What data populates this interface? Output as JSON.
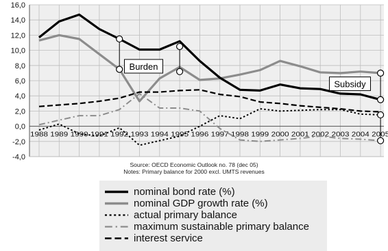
{
  "source_line1": "Source: OECD Economic Outlook no. 78 (dec 05)",
  "source_line2": "Notes: Primary balance for 2000 excl. UMTS revenues",
  "chart_data": {
    "type": "line",
    "x": [
      1988,
      1989,
      1990,
      1991,
      1992,
      1993,
      1994,
      1995,
      1996,
      1997,
      1998,
      1999,
      2000,
      2001,
      2002,
      2003,
      2004,
      2005
    ],
    "xlabel": "",
    "ylabel": "",
    "ylim": [
      -4.0,
      16.0
    ],
    "yticks": [
      "16,0",
      "14,0",
      "12,0",
      "10,0",
      "8,0",
      "6,0",
      "4,0",
      "2,0",
      "0,0",
      "-2,0",
      "-4,0"
    ],
    "grid": true,
    "series": [
      {
        "name": "nominal bond rate (%)",
        "color": "#000000",
        "style": "solid-thick",
        "values": [
          11.7,
          13.8,
          14.7,
          12.8,
          11.5,
          10.1,
          10.1,
          11.2,
          8.6,
          6.4,
          4.8,
          4.7,
          5.5,
          5.0,
          4.9,
          4.3,
          4.2,
          3.5
        ]
      },
      {
        "name": "nominal GDP growth rate (%)",
        "color": "#8c8c8c",
        "style": "solid-thick",
        "values": [
          11.3,
          12.0,
          11.5,
          9.5,
          7.5,
          3.3,
          6.3,
          7.8,
          6.1,
          6.3,
          6.8,
          7.4,
          8.6,
          7.9,
          7.1,
          7.0,
          7.2,
          7.0
        ]
      },
      {
        "name": "actual primary balance",
        "color": "#000000",
        "style": "dotted",
        "values": [
          -0.5,
          0.3,
          -1.0,
          -1.3,
          -0.2,
          -2.5,
          -1.9,
          -1.3,
          0.0,
          1.4,
          1.0,
          2.3,
          2.0,
          2.1,
          2.2,
          2.2,
          1.6,
          1.5
        ]
      },
      {
        "name": "maximum sustainable primary balance",
        "color": "#8c8c8c",
        "style": "dash-dot",
        "values": [
          0.2,
          0.8,
          1.4,
          1.4,
          2.2,
          4.3,
          2.4,
          2.4,
          2.0,
          -0.3,
          -1.8,
          -2.0,
          -1.8,
          -1.6,
          -1.3,
          -1.6,
          -1.7,
          -1.9
        ]
      },
      {
        "name": "interest service",
        "color": "#000000",
        "style": "dashed",
        "values": [
          2.6,
          2.8,
          3.0,
          3.3,
          3.7,
          4.5,
          4.5,
          4.7,
          4.8,
          4.2,
          3.9,
          3.2,
          3.0,
          2.7,
          2.5,
          2.3,
          2.0,
          1.9
        ]
      }
    ],
    "annotations": [
      {
        "text": "Burden",
        "year": 1992,
        "from": 11.5,
        "to": 7.5
      },
      {
        "text": "Burden",
        "year": 1995,
        "from": 10.5,
        "to": 7.2
      },
      {
        "text": "Subsidy",
        "year": 2005,
        "from": 7.0,
        "to": 3.5
      },
      {
        "text": "Subsidy",
        "year": 2005,
        "from": 1.5,
        "to": -1.9
      }
    ],
    "labels": {
      "burden": "Burden",
      "subsidy": "Subsidy"
    }
  }
}
